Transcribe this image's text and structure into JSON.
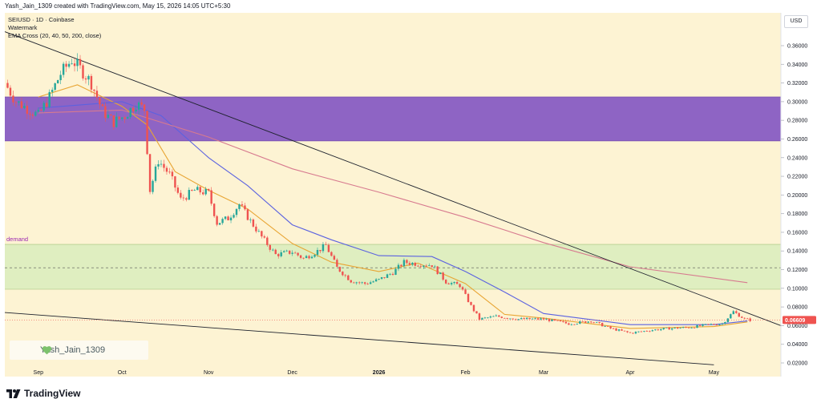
{
  "header": {
    "created_text": "Yash_Jain_1309 created with TradingView.com, May 15, 2026 14:05 UTC+5:30"
  },
  "legend": {
    "symbol_line": "SEIUSD · 1D · Coinbase",
    "watermark_label": "Watermark",
    "indicator_label": "EMA Cross (20, 40, 50, 200, close)"
  },
  "currency_button": "USD",
  "watermark_text": "Yash_Jain_1309",
  "branding": "TradingView",
  "annotations": {
    "demand_label": "demand"
  },
  "colors": {
    "background": "#fdf3d3",
    "supply_zone": "#8e64c4",
    "demand_zone": "#dfeec0",
    "ema_fast": "#e8a533",
    "ema_mid": "#5b62e0",
    "ema_slow": "#d77a8f",
    "up_candle": "#26a69a",
    "down_candle": "#ef5350",
    "last_price_badge": "#ef5350"
  },
  "chart_data": {
    "type": "candlestick",
    "symbol": "SEIUSD",
    "interval": "1D",
    "exchange": "Coinbase",
    "y_axis": {
      "min": 0.0,
      "max": 0.38,
      "tick_labels": [
        "0.36000",
        "0.34000",
        "0.32000",
        "0.30000",
        "0.28000",
        "0.26000",
        "0.24000",
        "0.22000",
        "0.20000",
        "0.18000",
        "0.16000",
        "0.14000",
        "0.12000",
        "0.10000",
        "0.08000",
        "0.06000",
        "0.04000",
        "0.02000"
      ],
      "tick_values": [
        0.36,
        0.34,
        0.32,
        0.3,
        0.28,
        0.26,
        0.24,
        0.22,
        0.2,
        0.18,
        0.16,
        0.14,
        0.12,
        0.1,
        0.08,
        0.06,
        0.04,
        0.02
      ]
    },
    "x_axis": {
      "start": "2025-08-20",
      "end": "2026-05-25",
      "tick_labels": [
        "Sep",
        "Oct",
        "Nov",
        "Dec",
        "2026",
        "Feb",
        "Mar",
        "Apr",
        "May"
      ],
      "tick_dates": [
        "2025-09-01",
        "2025-10-01",
        "2025-11-01",
        "2025-12-01",
        "2026-01-01",
        "2026-02-01",
        "2026-03-01",
        "2026-04-01",
        "2026-05-01"
      ]
    },
    "last_price": 0.06609,
    "last_price_label": "0.06609",
    "zones": [
      {
        "name": "supply",
        "from": 0.258,
        "to": 0.305
      },
      {
        "name": "demand",
        "from": 0.099,
        "to": 0.147,
        "mid": 0.122
      }
    ],
    "trendlines": [
      {
        "name": "upper-trendline",
        "from": {
          "date": "2025-08-20",
          "price": 0.375
        },
        "to": {
          "date": "2026-05-25",
          "price": 0.06
        }
      },
      {
        "name": "lower-trendline",
        "from": {
          "date": "2025-08-20",
          "price": 0.074
        },
        "to": {
          "date": "2026-05-01",
          "price": 0.018
        }
      }
    ],
    "ema_series": [
      {
        "period": 20,
        "color": "#e8a533",
        "points": [
          [
            "2025-09-01",
            0.305
          ],
          [
            "2025-09-15",
            0.318
          ],
          [
            "2025-10-01",
            0.295
          ],
          [
            "2025-10-10",
            0.275
          ],
          [
            "2025-10-20",
            0.225
          ],
          [
            "2025-11-01",
            0.205
          ],
          [
            "2025-11-15",
            0.185
          ],
          [
            "2025-12-01",
            0.148
          ],
          [
            "2025-12-15",
            0.128
          ],
          [
            "2026-01-01",
            0.118
          ],
          [
            "2026-01-15",
            0.127
          ],
          [
            "2026-02-01",
            0.105
          ],
          [
            "2026-02-15",
            0.072
          ],
          [
            "2026-03-01",
            0.068
          ],
          [
            "2026-04-01",
            0.057
          ],
          [
            "2026-05-01",
            0.059
          ],
          [
            "2026-05-13",
            0.064
          ]
        ]
      },
      {
        "period": 50,
        "color": "#5b62e0",
        "points": [
          [
            "2025-09-01",
            0.293
          ],
          [
            "2025-10-01",
            0.3
          ],
          [
            "2025-10-15",
            0.285
          ],
          [
            "2025-11-01",
            0.24
          ],
          [
            "2025-11-15",
            0.21
          ],
          [
            "2025-12-01",
            0.168
          ],
          [
            "2025-12-15",
            0.152
          ],
          [
            "2026-01-01",
            0.135
          ],
          [
            "2026-01-20",
            0.134
          ],
          [
            "2026-02-01",
            0.118
          ],
          [
            "2026-02-15",
            0.096
          ],
          [
            "2026-03-01",
            0.073
          ],
          [
            "2026-04-01",
            0.061
          ],
          [
            "2026-05-01",
            0.061
          ],
          [
            "2026-05-13",
            0.065
          ]
        ]
      },
      {
        "period": 200,
        "color": "#d77a8f",
        "points": [
          [
            "2025-09-01",
            0.288
          ],
          [
            "2025-10-01",
            0.291
          ],
          [
            "2025-11-01",
            0.262
          ],
          [
            "2025-12-01",
            0.228
          ],
          [
            "2026-01-01",
            0.203
          ],
          [
            "2026-02-01",
            0.176
          ],
          [
            "2026-03-01",
            0.149
          ],
          [
            "2026-04-01",
            0.123
          ],
          [
            "2026-05-13",
            0.106
          ]
        ]
      }
    ],
    "price_path": [
      [
        "2025-08-20",
        0.32
      ],
      [
        "2025-08-24",
        0.3
      ],
      [
        "2025-08-28",
        0.293
      ],
      [
        "2025-09-01",
        0.285
      ],
      [
        "2025-09-05",
        0.305
      ],
      [
        "2025-09-09",
        0.33
      ],
      [
        "2025-09-13",
        0.345
      ],
      [
        "2025-09-17",
        0.332
      ],
      [
        "2025-09-20",
        0.32
      ],
      [
        "2025-09-24",
        0.29
      ],
      [
        "2025-09-28",
        0.278
      ],
      [
        "2025-10-02",
        0.285
      ],
      [
        "2025-10-06",
        0.298
      ],
      [
        "2025-10-09",
        0.292
      ],
      [
        "2025-10-11",
        0.205
      ],
      [
        "2025-10-14",
        0.237
      ],
      [
        "2025-10-18",
        0.222
      ],
      [
        "2025-10-22",
        0.195
      ],
      [
        "2025-10-27",
        0.205
      ],
      [
        "2025-11-01",
        0.202
      ],
      [
        "2025-11-04",
        0.17
      ],
      [
        "2025-11-08",
        0.175
      ],
      [
        "2025-11-12",
        0.19
      ],
      [
        "2025-11-16",
        0.172
      ],
      [
        "2025-11-20",
        0.155
      ],
      [
        "2025-11-25",
        0.136
      ],
      [
        "2025-12-01",
        0.139
      ],
      [
        "2025-12-05",
        0.132
      ],
      [
        "2025-12-10",
        0.14
      ],
      [
        "2025-12-13",
        0.146
      ],
      [
        "2025-12-17",
        0.122
      ],
      [
        "2025-12-22",
        0.108
      ],
      [
        "2025-12-27",
        0.105
      ],
      [
        "2026-01-01",
        0.109
      ],
      [
        "2026-01-06",
        0.117
      ],
      [
        "2026-01-10",
        0.128
      ],
      [
        "2026-01-15",
        0.126
      ],
      [
        "2026-01-20",
        0.125
      ],
      [
        "2026-01-25",
        0.107
      ],
      [
        "2026-01-30",
        0.103
      ],
      [
        "2026-02-03",
        0.081
      ],
      [
        "2026-02-06",
        0.067
      ],
      [
        "2026-02-12",
        0.07
      ],
      [
        "2026-02-20",
        0.067
      ],
      [
        "2026-03-01",
        0.067
      ],
      [
        "2026-03-10",
        0.062
      ],
      [
        "2026-03-18",
        0.065
      ],
      [
        "2026-03-25",
        0.057
      ],
      [
        "2026-04-01",
        0.052
      ],
      [
        "2026-04-08",
        0.055
      ],
      [
        "2026-04-15",
        0.057
      ],
      [
        "2026-04-22",
        0.058
      ],
      [
        "2026-04-29",
        0.061
      ],
      [
        "2026-05-04",
        0.062
      ],
      [
        "2026-05-08",
        0.075
      ],
      [
        "2026-05-12",
        0.067
      ],
      [
        "2026-05-14",
        0.066
      ]
    ]
  }
}
